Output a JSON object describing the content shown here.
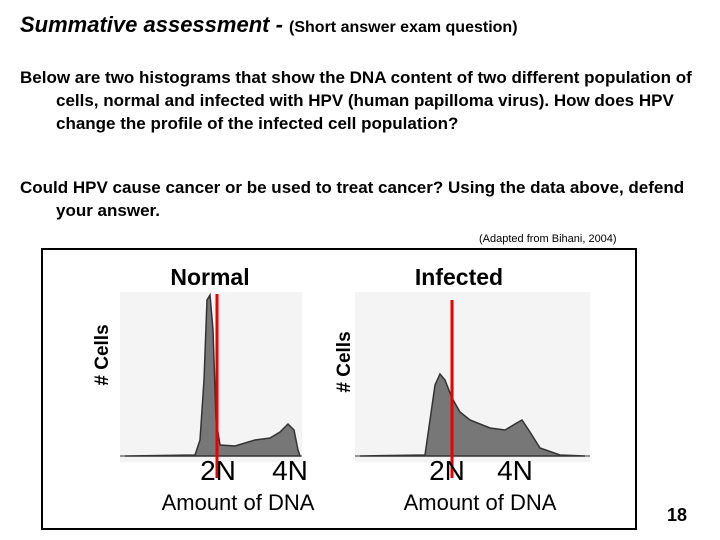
{
  "header": {
    "title": "Summative assessment - ",
    "subtitle": "(Short answer exam question)"
  },
  "paragraphs": [
    "Below are two histograms that show the DNA content of two different population of cells, normal and infected with HPV (human papilloma virus).  How does HPV change the profile of the infected cell population?",
    "Could HPV cause cancer or be used to treat cancer?  Using the data above, defend your answer."
  ],
  "citation": "(Adapted from Bihani, 2004)",
  "panels": [
    {
      "title": "Normal",
      "y_label": "# Cells",
      "x_ticks": [
        "2N",
        "4N"
      ],
      "x_label": "Amount of DNA"
    },
    {
      "title": "Infected",
      "y_label": "# Cells",
      "x_ticks": [
        "2N",
        "4N"
      ],
      "x_label": "Amount of DNA"
    }
  ],
  "page_number": "18"
}
